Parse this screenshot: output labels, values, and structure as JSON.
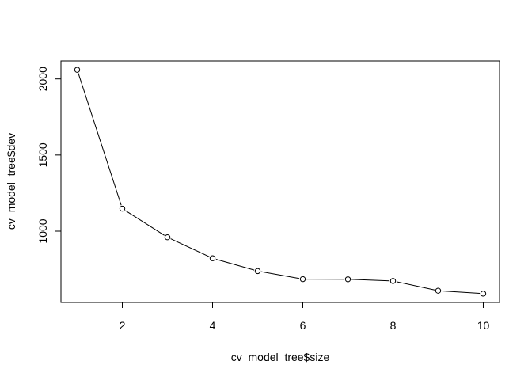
{
  "chart_data": {
    "type": "line",
    "title": "",
    "xlabel": "cv_model_tree$size",
    "ylabel": "cv_model_tree$dev",
    "x": [
      1,
      2,
      3,
      4,
      5,
      6,
      7,
      8,
      9,
      10
    ],
    "series": [
      {
        "values": [
          2060,
          1148,
          960,
          822,
          738,
          685,
          684,
          673,
          609,
          590
        ]
      }
    ],
    "xlim": [
      0.64,
      10.36
    ],
    "ylim": [
      532,
      2118
    ],
    "xticks": [
      2,
      4,
      6,
      8,
      10
    ],
    "yticks": [
      1000,
      1500,
      2000
    ],
    "grid": false,
    "legend": "none",
    "line_color": "#000000",
    "marker": "open-circle"
  }
}
